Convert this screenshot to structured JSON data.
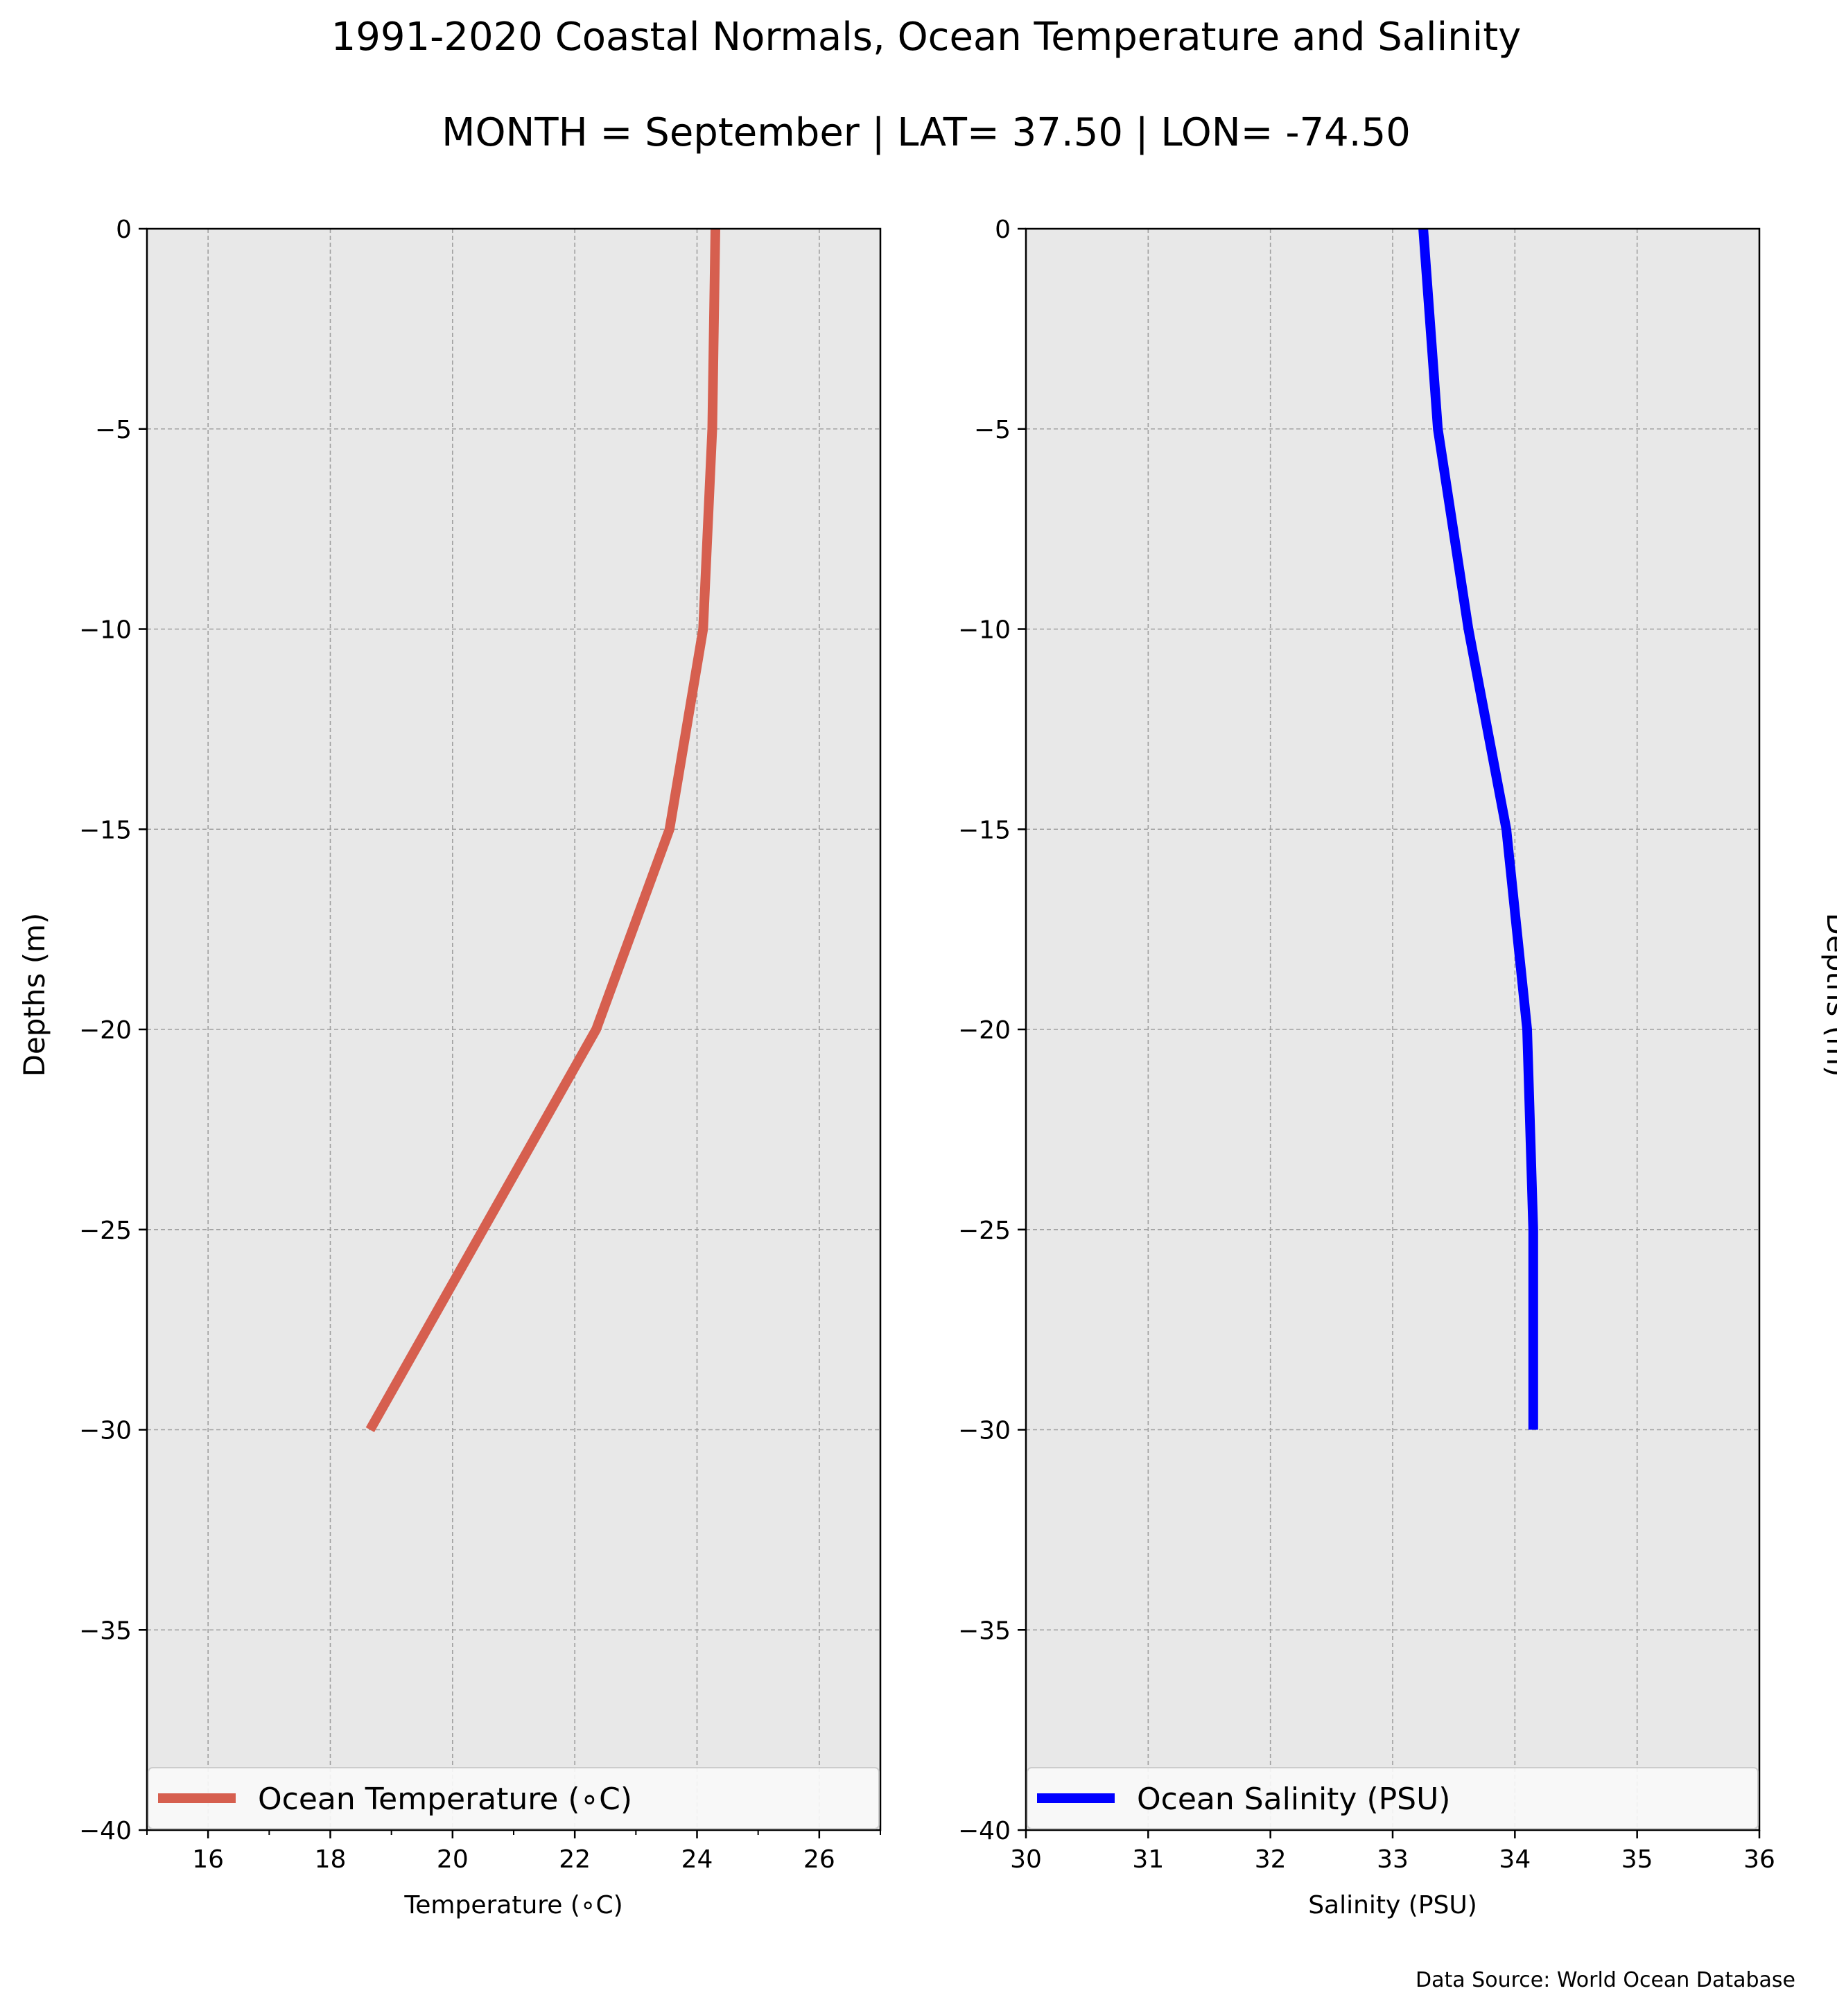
{
  "figure": {
    "title": "1991-2020 Coastal Normals, Ocean Temperature and Salinity",
    "subtitle": "MONTH = September | LAT= 37.50 | LON= -74.50",
    "source_note": "Data Source: World Ocean Database"
  },
  "chart_data": [
    {
      "type": "line",
      "xlabel": "Temperature (∘C)",
      "ylabel": "Depths (m)",
      "xlim": [
        15,
        27
      ],
      "ylim": [
        -40,
        0
      ],
      "xticks": [
        16,
        18,
        20,
        22,
        24,
        26
      ],
      "yticks": [
        0,
        -5,
        -10,
        -15,
        -20,
        -25,
        -30,
        -35,
        -40
      ],
      "grid": true,
      "legend_position": "bottom",
      "series": [
        {
          "name": "Ocean Temperature (∘C)",
          "color": "#d65f4f",
          "x": [
            24.3,
            24.25,
            24.1,
            23.55,
            22.35,
            20.5,
            18.65
          ],
          "y": [
            0,
            -5,
            -10,
            -15,
            -20,
            -25,
            -30
          ]
        }
      ]
    },
    {
      "type": "line",
      "xlabel": "Salinity (PSU)",
      "ylabel": "Depths (m)",
      "ylabel_position": "right",
      "xlim": [
        30,
        36
      ],
      "ylim": [
        -40,
        0
      ],
      "xticks": [
        30,
        31,
        32,
        33,
        34,
        35,
        36
      ],
      "yticks": [
        0,
        -5,
        -10,
        -15,
        -20,
        -25,
        -30,
        -35,
        -40
      ],
      "grid": true,
      "legend_position": "bottom",
      "series": [
        {
          "name": "Ocean Salinity (PSU)",
          "color": "#0000ff",
          "x": [
            33.25,
            33.37,
            33.62,
            33.93,
            34.1,
            34.15,
            34.15
          ],
          "y": [
            0,
            -5,
            -10,
            -15,
            -20,
            -25,
            -30
          ]
        }
      ]
    }
  ]
}
